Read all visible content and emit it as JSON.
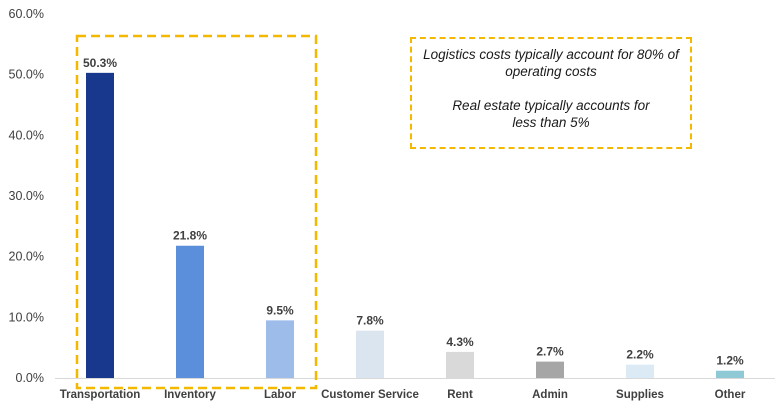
{
  "chart_data": {
    "type": "bar",
    "title": "",
    "xlabel": "",
    "ylabel": "",
    "categories": [
      "Transportation",
      "Inventory",
      "Labor",
      "Customer Service",
      "Rent",
      "Admin",
      "Supplies",
      "Other"
    ],
    "values": [
      50.3,
      21.8,
      9.5,
      7.8,
      4.3,
      2.7,
      2.2,
      1.2
    ],
    "value_labels": [
      "50.3%",
      "21.8%",
      "9.5%",
      "7.8%",
      "4.3%",
      "2.7%",
      "2.2%",
      "1.2%"
    ],
    "colors": [
      "#17388c",
      "#5b8fdc",
      "#9dbce9",
      "#dbe5f0",
      "#d9d9d9",
      "#a6a6a6",
      "#dceaf6",
      "#8fc9d6"
    ],
    "ylim": [
      0,
      60
    ],
    "yticks": [
      0,
      10,
      20,
      30,
      40,
      50,
      60
    ],
    "ytick_labels": [
      "0.0%",
      "10.0%",
      "20.0%",
      "30.0%",
      "40.0%",
      "50.0%",
      "60.0%"
    ],
    "grid": false,
    "legend": "none",
    "highlight": {
      "categories": [
        "Transportation",
        "Inventory",
        "Labor"
      ],
      "color": "#f5b800",
      "style": "dashed"
    },
    "annotation": {
      "line1": "Logistics costs typically  account for 80% of",
      "line2": "operating costs",
      "line3": "Real estate typically accounts for",
      "line4": "less than 5%"
    }
  }
}
